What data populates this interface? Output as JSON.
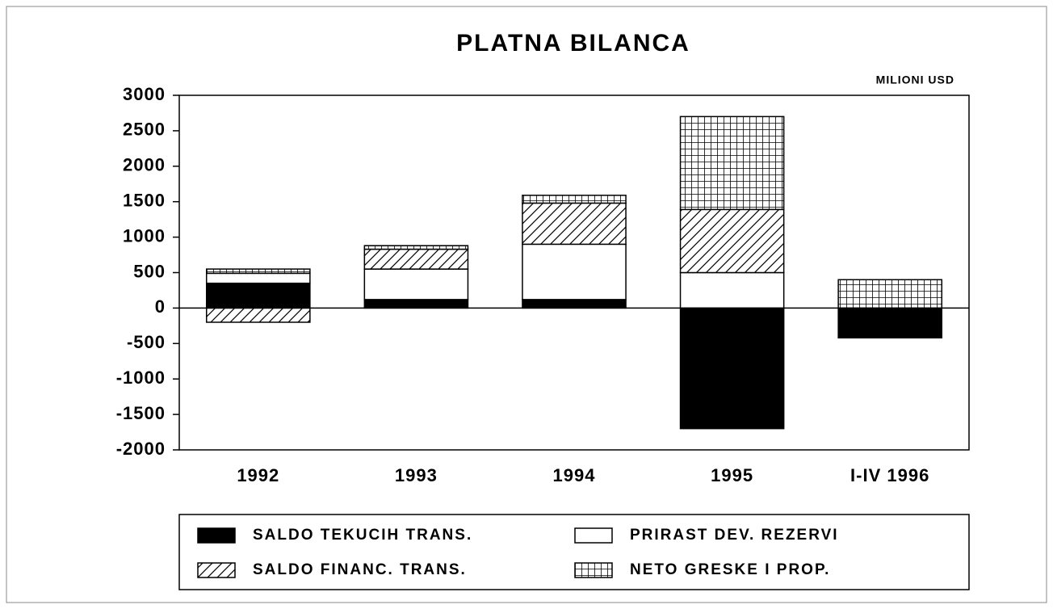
{
  "chart_data": {
    "type": "stacked_bar",
    "title": "PLATNA BILANCA",
    "units": "MILIONI USD",
    "categories": [
      "1992",
      "1993",
      "1994",
      "1995",
      "I-IV 1996"
    ],
    "series": [
      {
        "name": "SALDO TEKUCIH TRANS.",
        "color": "#000000",
        "pattern": "solid",
        "values": [
          350,
          120,
          120,
          -1700,
          -420
        ]
      },
      {
        "name": "PRIRAST DEV. REZERVI",
        "color": "#ffffff",
        "pattern": "none",
        "values": [
          140,
          430,
          780,
          500,
          null
        ]
      },
      {
        "name": "SALDO FINANC. TRANS.",
        "color": "#000000",
        "pattern": "hatch",
        "values": [
          -200,
          280,
          580,
          890,
          null
        ]
      },
      {
        "name": "NETO GRESKE I PROP.",
        "color": "#000000",
        "pattern": "grid",
        "values": [
          60,
          50,
          110,
          1310,
          400
        ]
      }
    ],
    "ylim": [
      -2000,
      3000
    ],
    "yticks": [
      -2000,
      -1500,
      -1000,
      -500,
      0,
      500,
      1000,
      1500,
      2000,
      2500,
      3000
    ],
    "grid": false
  }
}
